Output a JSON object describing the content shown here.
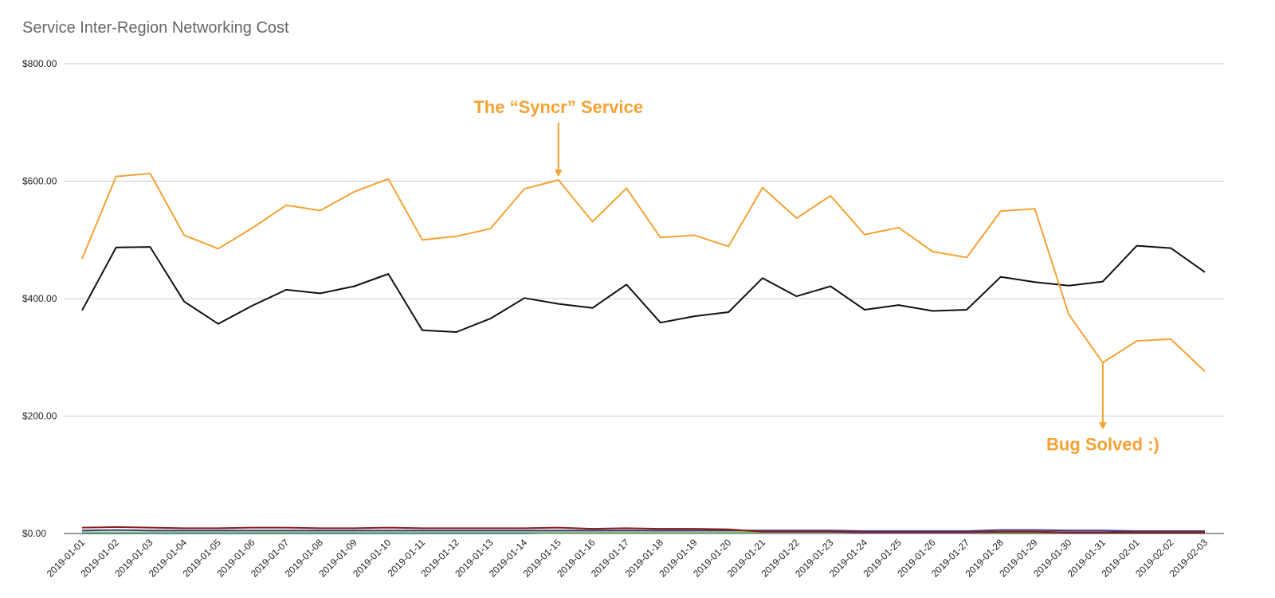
{
  "chart_data": {
    "type": "line",
    "title": "Service Inter-Region Networking Cost",
    "ylim": [
      0,
      800
    ],
    "yticks": [
      "$0.00",
      "$200.00",
      "$400.00",
      "$600.00",
      "$800.00"
    ],
    "grid": true,
    "x": [
      "2019-01-01",
      "2019-01-02",
      "2019-01-03",
      "2019-01-04",
      "2019-01-05",
      "2019-01-06",
      "2019-01-07",
      "2019-01-08",
      "2019-01-09",
      "2019-01-10",
      "2019-01-11",
      "2019-01-12",
      "2019-01-13",
      "2019-01-14",
      "2019-01-15",
      "2019-01-16",
      "2019-01-17",
      "2019-01-18",
      "2019-01-19",
      "2019-01-20",
      "2019-01-21",
      "2019-01-22",
      "2019-01-23",
      "2019-01-24",
      "2019-01-25",
      "2019-01-26",
      "2019-01-27",
      "2019-01-28",
      "2019-01-29",
      "2019-01-30",
      "2019-01-31",
      "2019-02-01",
      "2019-02-02",
      "2019-02-03"
    ],
    "series": [
      {
        "color": "#f4a233",
        "values": [
          468,
          608,
          613,
          508,
          485,
          520,
          559,
          550,
          582,
          604,
          500,
          506,
          519,
          587,
          602,
          531,
          588,
          504,
          508,
          489,
          589,
          537,
          575,
          509,
          521,
          480,
          470,
          549,
          553,
          373,
          291,
          328,
          331,
          276
        ]
      },
      {
        "color": "#111111",
        "values": [
          380,
          487,
          488,
          395,
          357,
          388,
          415,
          409,
          421,
          442,
          346,
          343,
          366,
          401,
          391,
          384,
          424,
          359,
          370,
          377,
          435,
          404,
          421,
          381,
          389,
          379,
          381,
          437,
          428,
          422,
          429,
          490,
          486,
          445
        ]
      },
      {
        "color": "#8b1a1a",
        "values": [
          10,
          11,
          10,
          9,
          9,
          10,
          10,
          9,
          9,
          10,
          9,
          9,
          9,
          9,
          10,
          8,
          9,
          8,
          8,
          7,
          3,
          3,
          3,
          2,
          2,
          2,
          2,
          3,
          3,
          2,
          2,
          2,
          2,
          2
        ]
      },
      {
        "color": "#3a3a8a",
        "values": [
          5,
          6,
          5,
          5,
          5,
          5,
          5,
          5,
          5,
          5,
          5,
          5,
          5,
          5,
          5,
          5,
          5,
          5,
          5,
          5,
          5,
          5,
          5,
          4,
          4,
          4,
          4,
          6,
          6,
          5,
          5,
          4,
          4,
          4
        ]
      },
      {
        "color": "#8bc34a",
        "values": [
          2,
          2,
          2,
          2,
          2,
          2,
          2,
          2,
          2,
          2,
          2,
          2,
          2,
          2,
          2,
          2,
          2,
          2,
          2,
          2,
          2,
          2,
          2,
          2,
          2,
          2,
          2,
          2,
          2,
          2,
          2,
          2,
          2,
          2
        ]
      },
      {
        "color": "#4a78c8",
        "values": [
          0,
          0,
          0,
          0,
          0,
          0,
          0,
          0,
          0,
          0,
          0,
          0,
          0,
          0,
          1,
          1,
          1,
          1,
          1,
          1,
          1,
          1,
          1,
          1,
          1,
          1,
          1,
          2,
          2,
          2,
          2,
          2,
          2,
          2
        ]
      }
    ],
    "annotations": [
      {
        "text": "The “Syncr” Service",
        "color": "#f4a233",
        "x": "2019-01-15",
        "y": 602,
        "position": "above"
      },
      {
        "text": "Bug Solved :)",
        "color": "#f4a233",
        "x": "2019-01-31",
        "y": 291,
        "position": "below"
      }
    ]
  }
}
